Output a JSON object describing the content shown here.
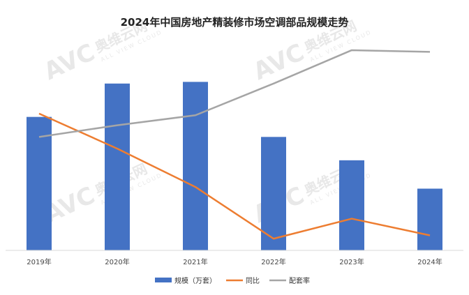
{
  "chart_data": {
    "type": "bar",
    "title": "2024年中国房地产精装修市场空调部品规模走势",
    "categories": [
      "2019年",
      "2020年",
      "2021年",
      "2022年",
      "2023年",
      "2024年"
    ],
    "series": [
      {
        "name": "规模（万套）",
        "type": "bar",
        "color": "#4472C4",
        "values": [
          0.8,
          1.0,
          1.01,
          0.68,
          0.54,
          0.37
        ]
      },
      {
        "name": "同比",
        "type": "line",
        "color": "#ED7D31",
        "values": [
          0.82,
          0.61,
          0.38,
          0.07,
          0.19,
          0.09
        ]
      },
      {
        "name": "配套率",
        "type": "line",
        "color": "#A5A5A5",
        "values": [
          0.68,
          0.75,
          0.81,
          1.0,
          1.2,
          1.19
        ]
      }
    ],
    "ylim": [
      0,
      1.25
    ],
    "grid": false,
    "legend": "bottom"
  },
  "watermark": {
    "brand": "AVC",
    "name": "奥维云网",
    "tagline": "ALL VIEW CLOUD"
  }
}
